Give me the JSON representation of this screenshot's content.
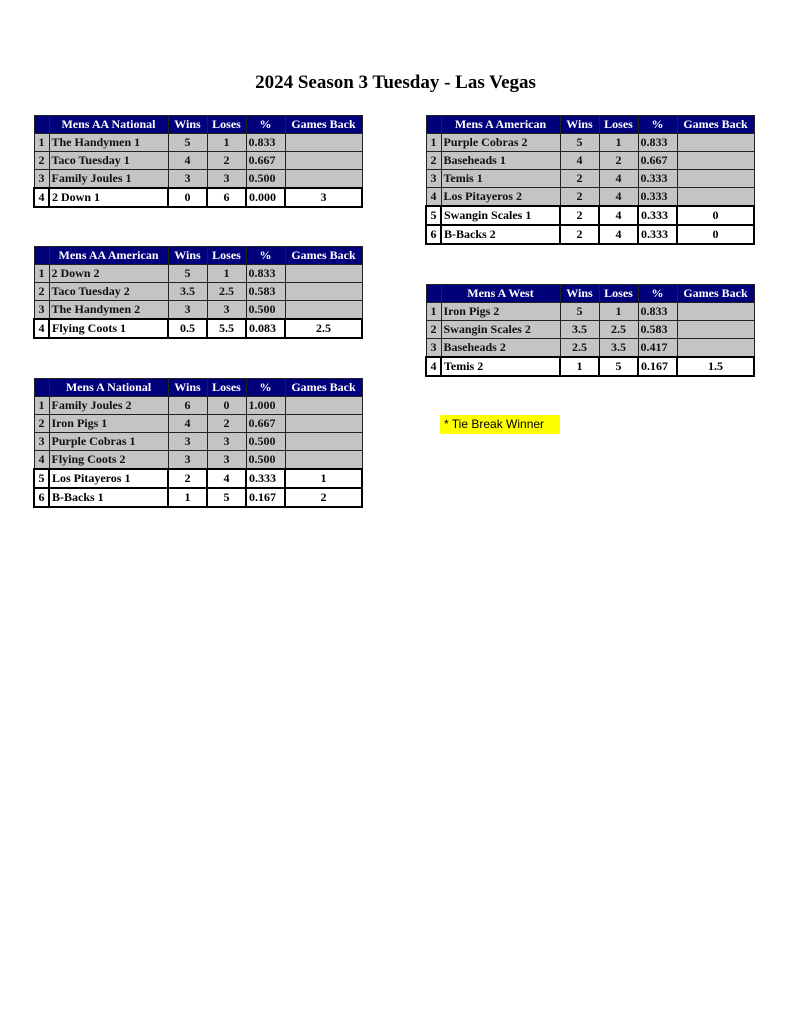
{
  "title": "2024 Season 3 Tuesday - Las Vegas",
  "tie_break_note": "* Tie Break Winner",
  "columns": [
    "Wins",
    "Loses",
    "%",
    "Games Back"
  ],
  "colors": {
    "header": "#00007a",
    "row": "#c4c4c4",
    "highlight": "#ffff00"
  },
  "tables": [
    {
      "name": "Mens AA National",
      "rows": [
        {
          "rank": "1",
          "team": "The Handymen 1",
          "wins": "5",
          "loses": "1",
          "pct": "0.833",
          "gb": "",
          "q": false
        },
        {
          "rank": "2",
          "team": "Taco Tuesday 1",
          "wins": "4",
          "loses": "2",
          "pct": "0.667",
          "gb": "",
          "q": false
        },
        {
          "rank": "3",
          "team": "Family Joules 1",
          "wins": "3",
          "loses": "3",
          "pct": "0.500",
          "gb": "",
          "q": false
        },
        {
          "rank": "4",
          "team": "2 Down 1",
          "wins": "0",
          "loses": "6",
          "pct": "0.000",
          "gb": "3",
          "q": true
        }
      ]
    },
    {
      "name": "Mens AA American",
      "rows": [
        {
          "rank": "1",
          "team": "2 Down 2",
          "wins": "5",
          "loses": "1",
          "pct": "0.833",
          "gb": "",
          "q": false
        },
        {
          "rank": "2",
          "team": "Taco Tuesday 2",
          "wins": "3.5",
          "loses": "2.5",
          "pct": "0.583",
          "gb": "",
          "q": false
        },
        {
          "rank": "3",
          "team": "The Handymen 2",
          "wins": "3",
          "loses": "3",
          "pct": "0.500",
          "gb": "",
          "q": false
        },
        {
          "rank": "4",
          "team": "Flying Coots 1",
          "wins": "0.5",
          "loses": "5.5",
          "pct": "0.083",
          "gb": "2.5",
          "q": true
        }
      ]
    },
    {
      "name": "Mens A National",
      "rows": [
        {
          "rank": "1",
          "team": "Family Joules 2",
          "wins": "6",
          "loses": "0",
          "pct": "1.000",
          "gb": "",
          "q": false
        },
        {
          "rank": "2",
          "team": "Iron Pigs 1",
          "wins": "4",
          "loses": "2",
          "pct": "0.667",
          "gb": "",
          "q": false
        },
        {
          "rank": "3",
          "team": "Purple Cobras 1",
          "wins": "3",
          "loses": "3",
          "pct": "0.500",
          "gb": "",
          "q": false
        },
        {
          "rank": "4",
          "team": "Flying Coots 2",
          "wins": "3",
          "loses": "3",
          "pct": "0.500",
          "gb": "",
          "q": false
        },
        {
          "rank": "5",
          "team": "Los Pitayeros 1",
          "wins": "2",
          "loses": "4",
          "pct": "0.333",
          "gb": "1",
          "q": true
        },
        {
          "rank": "6",
          "team": "B-Backs 1",
          "wins": "1",
          "loses": "5",
          "pct": "0.167",
          "gb": "2",
          "q": true
        }
      ]
    },
    {
      "name": "Mens A American",
      "rows": [
        {
          "rank": "1",
          "team": "Purple Cobras 2",
          "wins": "5",
          "loses": "1",
          "pct": "0.833",
          "gb": "",
          "q": false
        },
        {
          "rank": "2",
          "team": "Baseheads 1",
          "wins": "4",
          "loses": "2",
          "pct": "0.667",
          "gb": "",
          "q": false
        },
        {
          "rank": "3",
          "team": "Temis 1",
          "wins": "2",
          "loses": "4",
          "pct": "0.333",
          "gb": "",
          "q": false
        },
        {
          "rank": "4",
          "team": "Los Pitayeros 2",
          "wins": "2",
          "loses": "4",
          "pct": "0.333",
          "gb": "",
          "q": false
        },
        {
          "rank": "5",
          "team": "Swangin Scales 1",
          "wins": "2",
          "loses": "4",
          "pct": "0.333",
          "gb": "0",
          "q": true
        },
        {
          "rank": "6",
          "team": "B-Backs 2",
          "wins": "2",
          "loses": "4",
          "pct": "0.333",
          "gb": "0",
          "q": true
        }
      ]
    },
    {
      "name": "Mens A West",
      "rows": [
        {
          "rank": "1",
          "team": "Iron Pigs 2",
          "wins": "5",
          "loses": "1",
          "pct": "0.833",
          "gb": "",
          "q": false
        },
        {
          "rank": "2",
          "team": "Swangin Scales 2",
          "wins": "3.5",
          "loses": "2.5",
          "pct": "0.583",
          "gb": "",
          "q": false
        },
        {
          "rank": "3",
          "team": "Baseheads 2",
          "wins": "2.5",
          "loses": "3.5",
          "pct": "0.417",
          "gb": "",
          "q": false
        },
        {
          "rank": "4",
          "team": "Temis 2",
          "wins": "1",
          "loses": "5",
          "pct": "0.167",
          "gb": "1.5",
          "q": true
        }
      ]
    }
  ]
}
